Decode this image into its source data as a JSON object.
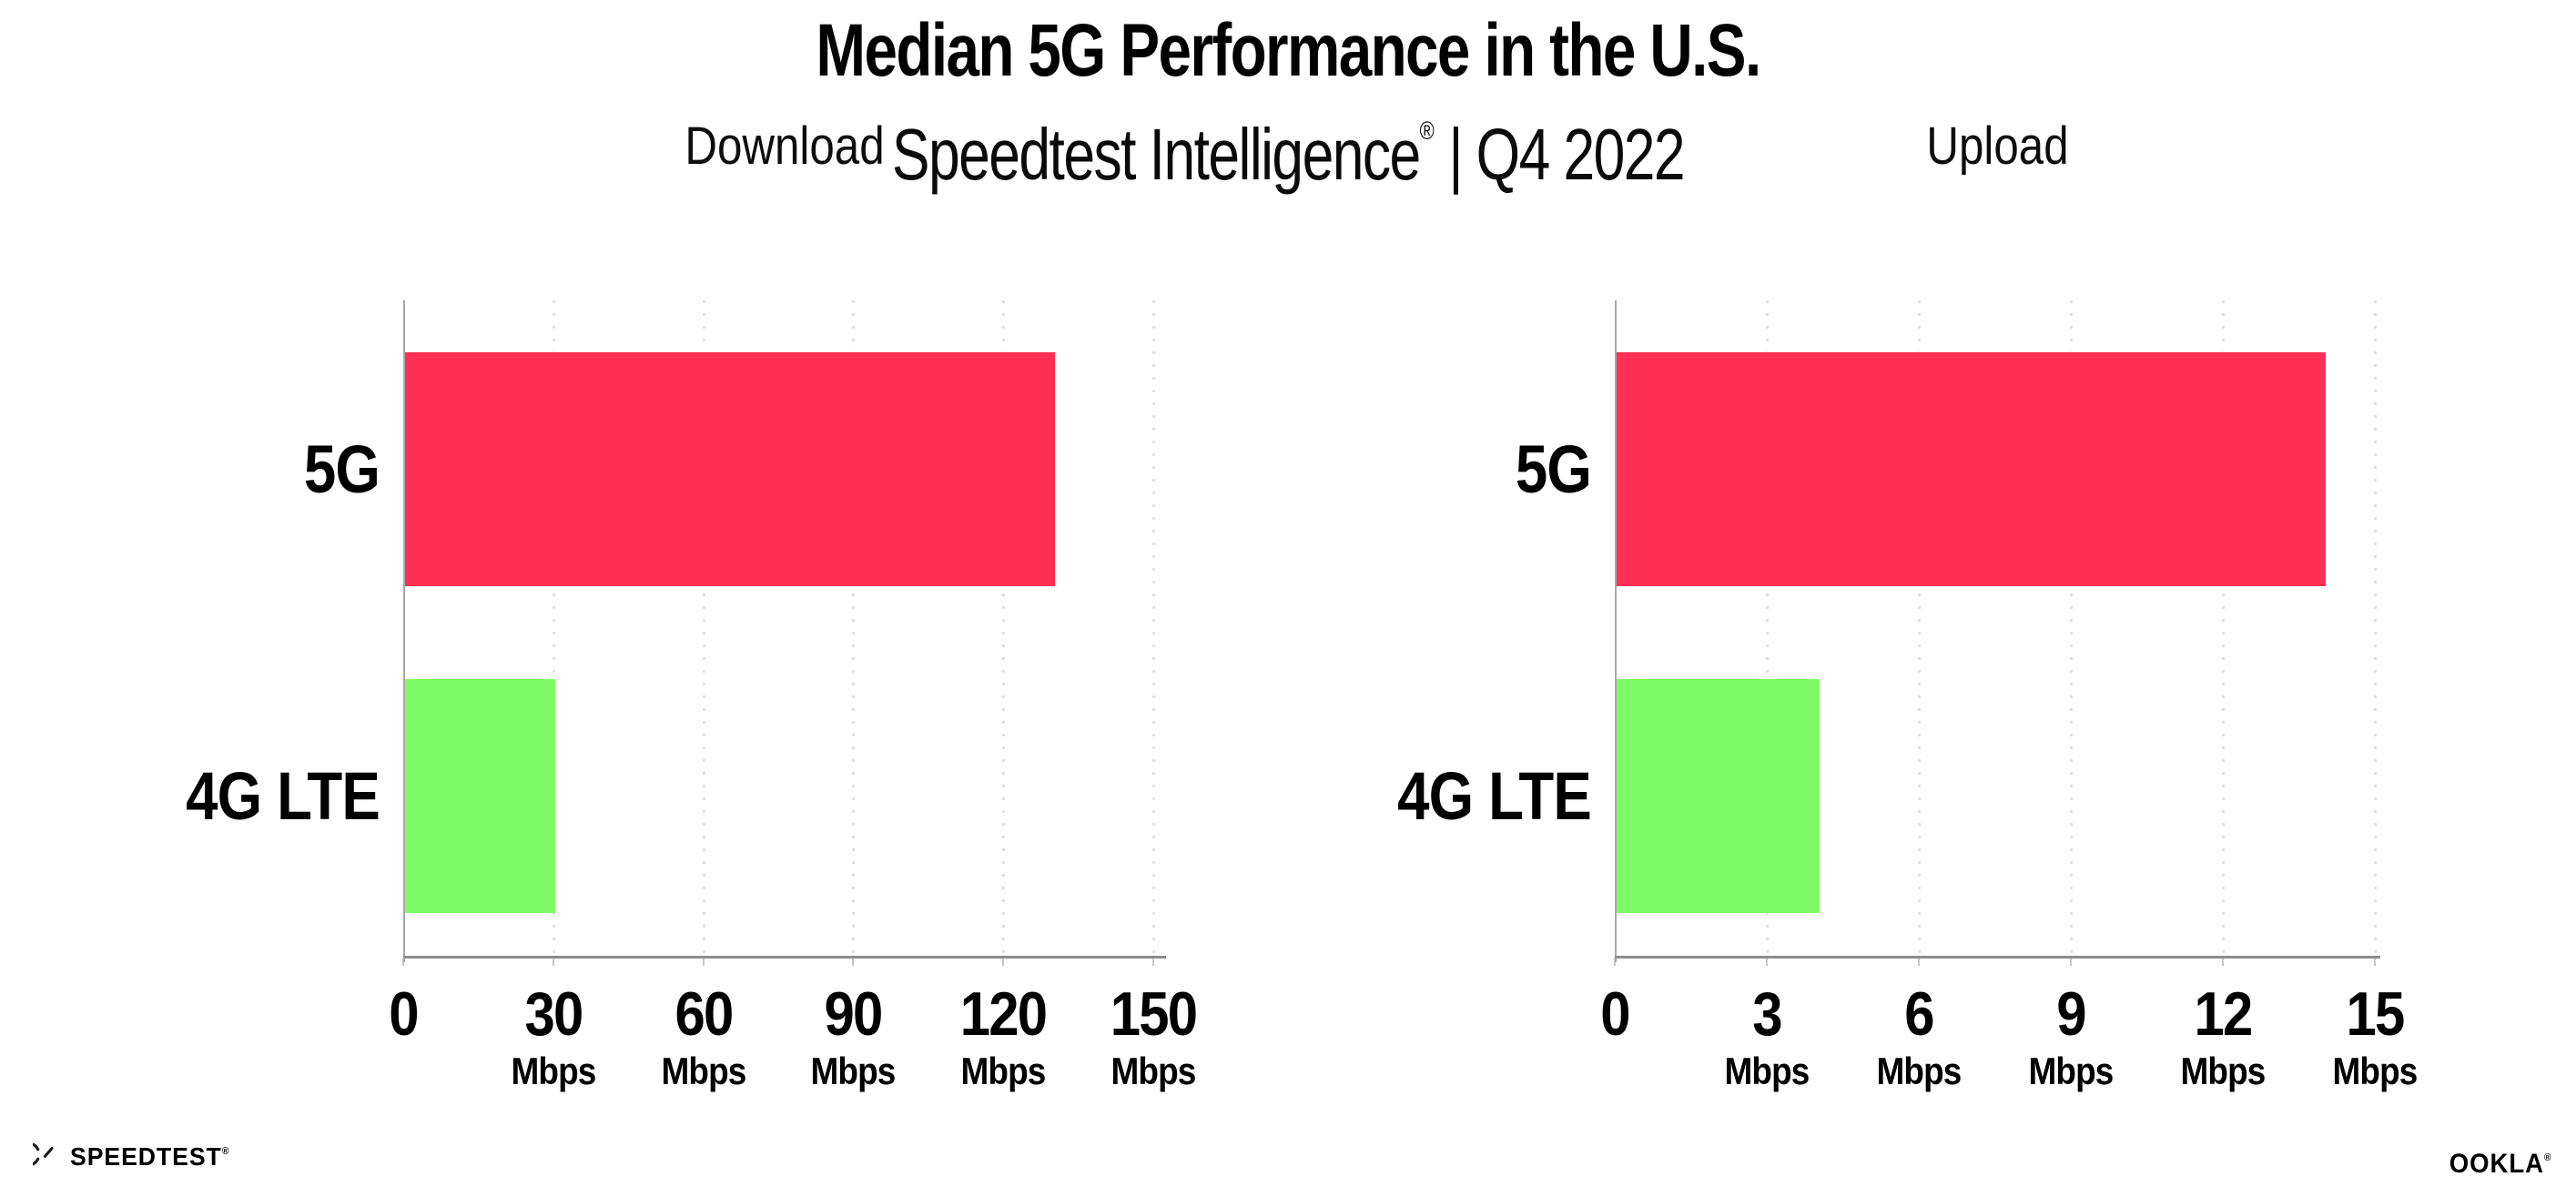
{
  "header": {
    "title": "Median 5G Performance in the U.S.",
    "subtitle": {
      "product": "Speedtest Intelligence",
      "registered_mark": "®",
      "separator": "|",
      "period": "Q4 2022"
    }
  },
  "chart_data": [
    {
      "type": "bar",
      "orientation": "horizontal",
      "title": "Download",
      "categories": [
        "5G",
        "4G LTE"
      ],
      "values": [
        130,
        30
      ],
      "unit": "Mbps",
      "xlabel": "",
      "ylabel": "",
      "xlim": [
        0,
        150
      ],
      "xticks": [
        0,
        30,
        60,
        90,
        120,
        150
      ],
      "bar_colors": [
        "#FF3053",
        "#7DFB64"
      ],
      "grid": "vertical-dotted",
      "legend": "none",
      "zero_tick_shows_unit": false
    },
    {
      "type": "bar",
      "orientation": "horizontal",
      "title": "Upload",
      "categories": [
        "5G",
        "4G LTE"
      ],
      "values": [
        14,
        4
      ],
      "unit": "Mbps",
      "xlabel": "",
      "ylabel": "",
      "xlim": [
        0,
        15
      ],
      "xticks": [
        0,
        3,
        6,
        9,
        12,
        15
      ],
      "bar_colors": [
        "#FF3053",
        "#7DFB64"
      ],
      "grid": "vertical-dotted",
      "legend": "none",
      "zero_tick_shows_unit": false
    }
  ],
  "footer": {
    "speedtest": {
      "icon": "speedtest-gauge-icon",
      "label": "SPEEDTEST",
      "mark": "®"
    },
    "ookla": {
      "label": "OOKLA",
      "mark": "®"
    }
  },
  "colors": {
    "background": "#FFFFFF",
    "bar_5g": "#FF3053",
    "bar_4g_lte": "#7DFB64",
    "axis_line": "#8D8D8D",
    "y_axis_line": "#A8A8A8",
    "gridline": "#E1E1EA",
    "text": "#000000"
  }
}
